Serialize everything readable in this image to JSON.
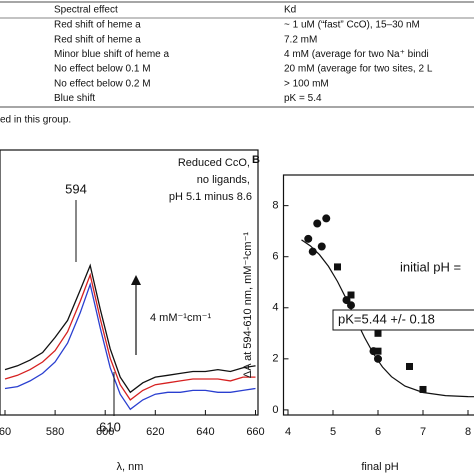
{
  "table": {
    "header": [
      "Spectral effect",
      "Kd"
    ],
    "rows": [
      [
        "Red shift of heme a",
        "~ 1 uM (“fast” CcO), 15–30 nM"
      ],
      [
        "Red shift of heme a",
        "7.2 mM"
      ],
      [
        "Minor blue shift of heme a",
        "4 mM (average for two Na⁺ bindi"
      ],
      [
        "No effect below 0.1 M",
        "20 mM (average for two sites, 2 L"
      ],
      [
        "No effect below 0.2 M",
        "> 100 mM"
      ],
      [
        "Blue shift",
        "pK = 5.4"
      ]
    ],
    "footnote": "ed in this group."
  },
  "chart_data": [
    {
      "type": "line",
      "xlabel": "λ, nm",
      "annotations": [
        "594",
        "610",
        "Reduced CcO,",
        "no ligands,",
        "pH 5.1 minus 8.6",
        "4 mM⁻¹cm⁻¹"
      ],
      "xlim": [
        558,
        661
      ],
      "xticks": [
        {
          "value": 560,
          "label": "60"
        },
        580,
        600,
        620,
        640,
        660
      ],
      "ylim": [
        -2,
        12
      ],
      "x": [
        560,
        565,
        570,
        575,
        580,
        585,
        590,
        594,
        598,
        602,
        606,
        610,
        615,
        620,
        625,
        630,
        635,
        640,
        645,
        650,
        655,
        660
      ],
      "series": [
        {
          "color": "#111111",
          "values": [
            0.4,
            0.6,
            0.9,
            1.3,
            2.1,
            3.0,
            4.6,
            5.9,
            3.6,
            1.5,
            0.0,
            -0.8,
            -0.3,
            0.0,
            0.1,
            0.2,
            0.3,
            0.3,
            0.4,
            0.3,
            0.5,
            0.6
          ]
        },
        {
          "color": "#d62020",
          "values": [
            -0.1,
            0.1,
            0.4,
            0.8,
            1.4,
            2.4,
            4.0,
            5.4,
            3.1,
            1.0,
            -0.4,
            -1.2,
            -0.7,
            -0.4,
            -0.3,
            -0.2,
            -0.1,
            -0.1,
            -0.1,
            -0.2,
            0.0,
            0.0
          ]
        },
        {
          "color": "#2a3fd0",
          "values": [
            -0.6,
            -0.5,
            -0.2,
            0.2,
            0.8,
            1.8,
            3.4,
            4.9,
            2.6,
            0.5,
            -0.9,
            -1.7,
            -1.2,
            -0.9,
            -0.8,
            -0.8,
            -0.7,
            -0.7,
            -0.8,
            -0.8,
            -0.7,
            -0.6
          ]
        }
      ]
    },
    {
      "type": "scatter",
      "panel": "B",
      "xlabel": "final pH",
      "ylabel": "ΔA at 594-610 nm, mM⁻¹cm⁻¹",
      "annotations": [
        "initial pH =",
        "pK=5.44 +/- 0.18"
      ],
      "xlim": [
        3.9,
        8.5
      ],
      "xticks": [
        4,
        5,
        6,
        7,
        8
      ],
      "ylim": [
        -0.2,
        9.2
      ],
      "yticks": [
        0,
        2,
        4,
        6,
        8
      ],
      "series": [
        {
          "style": "circle",
          "color": "#111111",
          "x": [
            4.45,
            4.55,
            4.65,
            4.75,
            4.85,
            5.3,
            5.4,
            5.9,
            6.0
          ],
          "values": [
            6.7,
            6.2,
            7.3,
            6.4,
            7.5,
            4.3,
            4.1,
            2.3,
            2.0
          ]
        },
        {
          "style": "square",
          "color": "#111111",
          "x": [
            5.1,
            5.4,
            6.0,
            6.0,
            6.7,
            7.0
          ],
          "values": [
            5.6,
            4.5,
            3.0,
            2.3,
            1.7,
            0.8
          ]
        },
        {
          "style": "line",
          "color": "#111111",
          "x": [
            4.3,
            4.5,
            4.7,
            4.9,
            5.1,
            5.3,
            5.5,
            5.7,
            5.9,
            6.1,
            6.3,
            6.6,
            7.0,
            7.5,
            8.0,
            8.5
          ],
          "values": [
            6.66,
            6.42,
            6.08,
            5.62,
            5.03,
            4.33,
            3.57,
            2.84,
            2.2,
            1.68,
            1.3,
            0.93,
            0.68,
            0.56,
            0.52,
            0.51
          ]
        }
      ]
    }
  ]
}
